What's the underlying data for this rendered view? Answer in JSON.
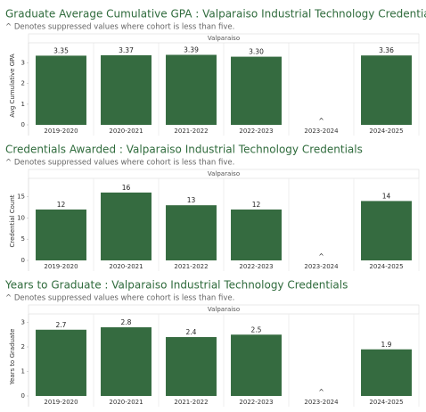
{
  "chart_data": [
    {
      "type": "bar",
      "title": "Graduate Average Cumulative GPA : Valparaiso Industrial Technology Credentials",
      "subtitle": "^ Denotes suppressed values where cohort is less than five.",
      "panel": "Valparaiso",
      "y_label": "Avg Cumulative GPA",
      "categories": [
        "2019-2020",
        "2020-2021",
        "2021-2022",
        "2022-2023",
        "2023-2024",
        "2024-2025"
      ],
      "values": [
        3.35,
        3.37,
        3.39,
        3.3,
        null,
        3.36
      ],
      "value_labels": [
        "3.35",
        "3.37",
        "3.39",
        "3.30",
        "^",
        "3.36"
      ],
      "color": "#356b40",
      "ylim": [
        0,
        3.8
      ],
      "yticks": [
        0,
        1,
        2,
        3
      ]
    },
    {
      "type": "bar",
      "title": "Credentials Awarded : Valparaiso Industrial Technology Credentials",
      "subtitle": "^ Denotes suppressed values where cohort is less than five.",
      "panel": "Valparaiso",
      "y_label": "Credential Count",
      "categories": [
        "2019-2020",
        "2020-2021",
        "2021-2022",
        "2022-2023",
        "2023-2024",
        "2024-2025"
      ],
      "values": [
        12,
        16,
        13,
        12,
        null,
        14
      ],
      "value_labels": [
        "12",
        "16",
        "13",
        "12",
        "^",
        "14"
      ],
      "color": "#356b40",
      "ylim": [
        0,
        18.5
      ],
      "yticks": [
        0,
        5,
        10,
        15
      ]
    },
    {
      "type": "bar",
      "title": "Years to Graduate : Valparaiso Industrial Technology Credentials",
      "subtitle": "^ Denotes suppressed values where cohort is less than five.",
      "panel": "Valparaiso",
      "y_label": "Years to Graduate",
      "categories": [
        "2019-2020",
        "2020-2021",
        "2021-2022",
        "2022-2023",
        "2023-2024",
        "2024-2025"
      ],
      "values": [
        2.7,
        2.8,
        2.4,
        2.5,
        null,
        1.9
      ],
      "value_labels": [
        "2.7",
        "2.8",
        "2.4",
        "2.5",
        "^",
        "1.9"
      ],
      "color": "#356b40",
      "ylim": [
        0,
        3.2
      ],
      "yticks": [
        0,
        1,
        2,
        3
      ]
    }
  ]
}
